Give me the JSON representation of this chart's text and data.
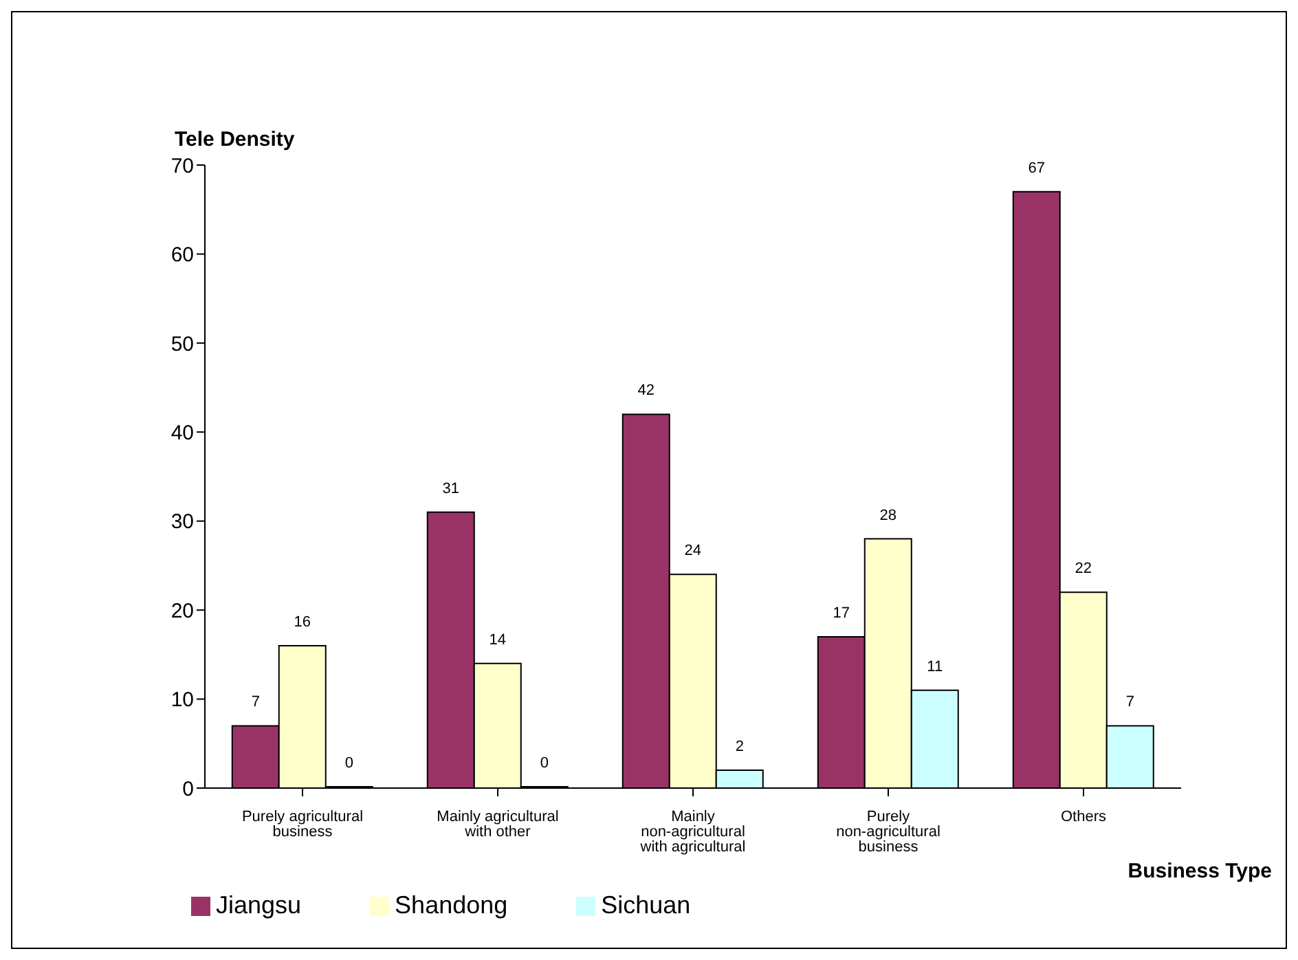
{
  "chart_data": {
    "type": "bar",
    "xlabel": "Business Type",
    "ylabel": "Tele Density",
    "categories": [
      "Purely agricultural business",
      "Mainly agricultural with other",
      "Mainly non-agricultural with agricultural",
      "Purely non-agricultural business",
      "Others"
    ],
    "series": [
      {
        "name": "Jiangsu",
        "color": "#993366",
        "values": [
          7,
          31,
          42,
          17,
          67
        ]
      },
      {
        "name": "Shandong",
        "color": "#ffffcc",
        "values": [
          16,
          14,
          24,
          28,
          22
        ]
      },
      {
        "name": "Sichuan",
        "color": "#ccffff",
        "values": [
          0,
          0,
          2,
          11,
          7
        ]
      }
    ],
    "ylim": [
      0,
      70
    ],
    "yticks": [
      0,
      10,
      20,
      30,
      40,
      50,
      60,
      70
    ],
    "grid": false,
    "legend": "bottom left",
    "data_labels": true
  }
}
